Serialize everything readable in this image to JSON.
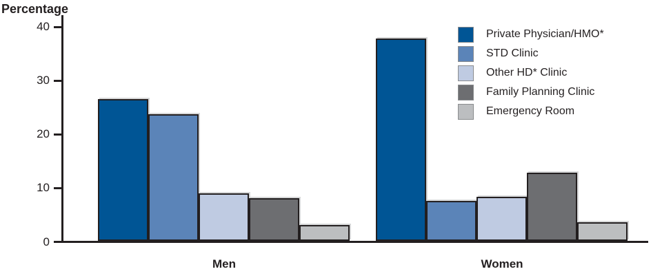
{
  "chart_data": {
    "type": "bar",
    "title": "Percentage",
    "ylabel": "Percentage",
    "xlabel": "",
    "categories": [
      "Men",
      "Women"
    ],
    "series": [
      {
        "name": "Private Physician/HMO*",
        "color": "#005595",
        "values": [
          26.6,
          37.8
        ]
      },
      {
        "name": "STD Clinic",
        "color": "#5b84b8",
        "values": [
          23.7,
          7.6
        ]
      },
      {
        "name": "Other HD* Clinic",
        "color": "#bfcbe2",
        "values": [
          9.0,
          8.4
        ]
      },
      {
        "name": "Family Planning Clinic",
        "color": "#6d6e71",
        "values": [
          8.1,
          12.9
        ]
      },
      {
        "name": "Emergency Room",
        "color": "#bcbec0",
        "values": [
          3.2,
          3.6
        ]
      }
    ],
    "y_ticks": [
      0,
      10,
      20,
      30,
      40
    ],
    "ylim": [
      0,
      40
    ],
    "grid": false,
    "legend_position": "top-right"
  },
  "colors": {
    "axis": "#231f20",
    "text": "#231f20",
    "bar_outline": "#231f20",
    "background": "#ffffff"
  }
}
